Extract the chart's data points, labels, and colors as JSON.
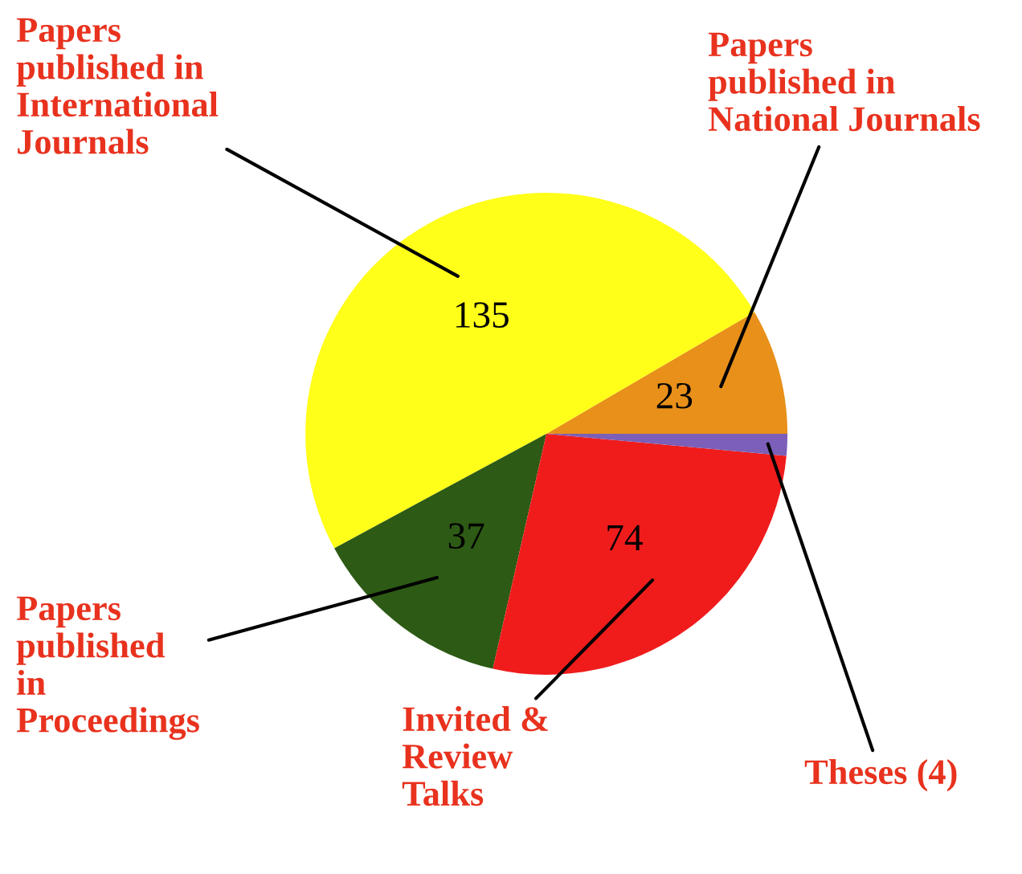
{
  "chart_data": {
    "type": "pie",
    "categories": [
      "Papers published in National Journals",
      "Papers published in International Journals",
      "Papers published in Proceedings",
      "Invited & Review Talks",
      "Theses (4)"
    ],
    "values": [
      23,
      135,
      37,
      74,
      4
    ],
    "value_labels": [
      "23",
      "135",
      "37",
      "74",
      null
    ],
    "colors": [
      "#e8901a",
      "#ffff1a",
      "#2d5a14",
      "#f01c1c",
      "#7b5fb8"
    ]
  }
}
